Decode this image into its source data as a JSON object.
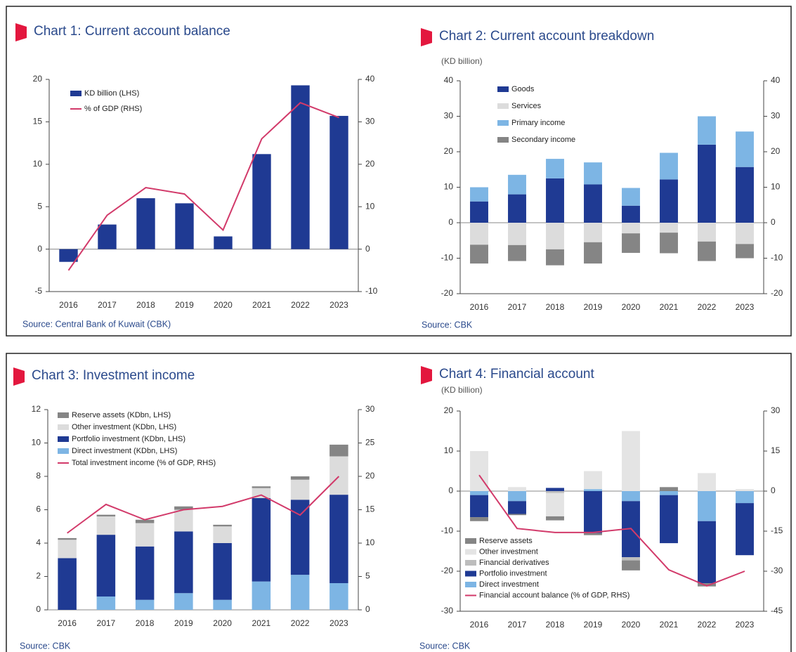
{
  "charts": [
    {
      "type": "combo",
      "title": "Chart 1: Current account balance",
      "source": "Source: Central Bank of Kuwait (CBK)",
      "categories": [
        "2016",
        "2017",
        "2018",
        "2019",
        "2020",
        "2021",
        "2022",
        "2023"
      ],
      "ylim": [
        -5,
        20
      ],
      "yticks": [
        -5,
        0,
        5,
        10,
        15,
        20
      ],
      "y2lim": [
        -10,
        40
      ],
      "y2ticks": [
        -10,
        0,
        10,
        20,
        30,
        40
      ],
      "legend": "upper left",
      "legend_reversed": false,
      "series": [
        {
          "name": "KD billion (LHS)",
          "type": "bar",
          "color": "#1f3a93",
          "values": [
            -1.5,
            2.9,
            6.0,
            5.4,
            1.5,
            11.2,
            19.3,
            15.7
          ]
        },
        {
          "name": "% of GDP (RHS)",
          "type": "line",
          "axis": "y2",
          "color": "#d23a6a",
          "values": [
            -5,
            8,
            14.5,
            13,
            4.5,
            26,
            34.5,
            31
          ]
        }
      ]
    },
    {
      "type": "combo",
      "title": "Chart 2:  Current account breakdown",
      "subtitle": "(KD billion)",
      "source": "Source: CBK",
      "categories": [
        "2016",
        "2017",
        "2018",
        "2019",
        "2020",
        "2021",
        "2022",
        "2023"
      ],
      "ylim": [
        -20,
        40
      ],
      "yticks": [
        -20,
        -10,
        0,
        10,
        20,
        30,
        40
      ],
      "y2lim": [
        -20,
        40
      ],
      "y2ticks": [
        -20,
        -10,
        0,
        10,
        20,
        30,
        40
      ],
      "legend": "upper left",
      "legend_reversed": false,
      "series": [
        {
          "name": "Goods",
          "type": "bar",
          "color": "#1f3a93",
          "values": [
            6,
            8,
            12.5,
            10.8,
            4.8,
            12.2,
            22,
            15.7
          ]
        },
        {
          "name": "Services",
          "type": "bar",
          "color": "#dcdcdc",
          "values": [
            -6.2,
            -6.3,
            -7.5,
            -5.5,
            -3,
            -2.8,
            -5.3,
            -6
          ]
        },
        {
          "name": "Primary income",
          "type": "bar",
          "color": "#7db5e4",
          "values": [
            4,
            5.5,
            5.5,
            6.2,
            5,
            7.5,
            8,
            10
          ]
        },
        {
          "name": "Secondary income",
          "type": "bar",
          "color": "#858585",
          "values": [
            -5.3,
            -4.5,
            -4.5,
            -6,
            -5.5,
            -5.8,
            -5.5,
            -4
          ]
        }
      ]
    },
    {
      "type": "combo",
      "title": "Chart 3: Investment income",
      "source": "Source: CBK",
      "categories": [
        "2016",
        "2017",
        "2018",
        "2019",
        "2020",
        "2021",
        "2022",
        "2023"
      ],
      "ylim": [
        0,
        12
      ],
      "yticks": [
        0,
        2,
        4,
        6,
        8,
        10,
        12
      ],
      "y2lim": [
        0,
        30
      ],
      "y2ticks": [
        0,
        5,
        10,
        15,
        20,
        25,
        30
      ],
      "legend": "upper left",
      "legend_reversed": true,
      "series": [
        {
          "name": "Direct investment (KDbn, LHS)",
          "type": "bar",
          "color": "#7db5e4",
          "values": [
            0,
            0.8,
            0.6,
            1.0,
            0.6,
            1.7,
            2.1,
            1.6
          ]
        },
        {
          "name": "Portfolio investment (KDbn, LHS)",
          "type": "bar",
          "color": "#1f3a93",
          "values": [
            3.1,
            3.7,
            3.2,
            3.7,
            3.4,
            5.0,
            4.5,
            5.3
          ]
        },
        {
          "name": "Other investment (KDbn, LHS)",
          "type": "bar",
          "color": "#dcdcdc",
          "values": [
            1.1,
            1.1,
            1.4,
            1.3,
            1.0,
            0.6,
            1.2,
            2.3
          ]
        },
        {
          "name": "Reserve assets (KDbn, LHS)",
          "type": "bar",
          "color": "#858585",
          "values": [
            0.1,
            0.1,
            0.2,
            0.2,
            0.1,
            0.1,
            0.2,
            0.7
          ]
        },
        {
          "name": "Total investment income (% of GDP, RHS)",
          "type": "line",
          "axis": "y2",
          "color": "#d23a6a",
          "values": [
            11.5,
            15.8,
            13.5,
            15,
            15.5,
            17.2,
            14.2,
            20
          ]
        }
      ]
    },
    {
      "type": "combo",
      "title": "Chart 4: Financial account",
      "subtitle": "(KD billion)",
      "source": "Source: CBK",
      "categories": [
        "2016",
        "2017",
        "2018",
        "2019",
        "2020",
        "2021",
        "2022",
        "2023"
      ],
      "ylim": [
        -30,
        20
      ],
      "yticks": [
        -30,
        -20,
        -10,
        0,
        10,
        20
      ],
      "y2lim": [
        -45,
        30
      ],
      "y2ticks": [
        -45,
        -30,
        -15,
        0,
        15,
        30
      ],
      "legend": "lower left",
      "legend_reversed": true,
      "series": [
        {
          "name": "Direct investment",
          "type": "bar",
          "color": "#7db5e4",
          "values": [
            -1,
            -2.5,
            0,
            0.5,
            -2.5,
            -1,
            -7.5,
            -3
          ]
        },
        {
          "name": "Portfolio investment",
          "type": "bar",
          "color": "#1f3a93",
          "values": [
            -5.5,
            -3.2,
            0.8,
            -10.5,
            -14,
            -12,
            -15.5,
            -13
          ]
        },
        {
          "name": "Financial derivatives",
          "type": "bar",
          "color": "#bdbdbd",
          "values": [
            0,
            0,
            -0.5,
            0,
            -0.8,
            0,
            0,
            0
          ]
        },
        {
          "name": "Other investment",
          "type": "bar",
          "color": "#e4e4e4",
          "values": [
            10,
            1,
            -5.8,
            4.5,
            15,
            0,
            4.5,
            0.5
          ]
        },
        {
          "name": "Reserve assets",
          "type": "bar",
          "color": "#858585",
          "values": [
            -1,
            -0.3,
            -1,
            -0.5,
            -2.5,
            1,
            -0.8,
            0
          ]
        },
        {
          "name": "Financial account balance (% of GDP, RHS)",
          "type": "line",
          "axis": "y2",
          "color": "#d23a6a",
          "values": [
            6,
            -14,
            -15.5,
            -15.5,
            -14,
            -29.5,
            -35.5,
            -30
          ]
        }
      ]
    }
  ]
}
